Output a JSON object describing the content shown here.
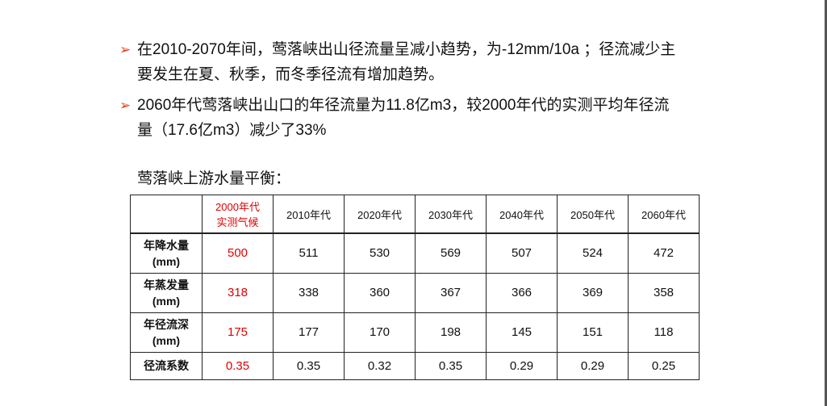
{
  "bullets": [
    "在2010-2070年间，莺落峡出山径流量呈减小趋势，为-12mm/10a ；径流减少主要发生在夏、秋季，而冬季径流有增加趋势。",
    "2060年代莺落峡出山口的年径流量为11.8亿m3，较2000年代的实测平均年径流量（17.6亿m3）减少了33%"
  ],
  "table": {
    "caption": "莺落峡上游水量平衡：",
    "header": [
      [
        "2000年代",
        "实测气候"
      ],
      [
        "2010年代"
      ],
      [
        "2020年代"
      ],
      [
        "2030年代"
      ],
      [
        "2040年代"
      ],
      [
        "2050年代"
      ],
      [
        "2060年代"
      ]
    ],
    "rows": [
      {
        "label": [
          "年降水量",
          "(mm)"
        ],
        "values": [
          500,
          511,
          530,
          569,
          507,
          524,
          472
        ]
      },
      {
        "label": [
          "年蒸发量",
          "(mm)"
        ],
        "values": [
          318,
          338,
          360,
          367,
          366,
          369,
          358
        ]
      },
      {
        "label": [
          "年径流深",
          "(mm)"
        ],
        "values": [
          175,
          177,
          170,
          198,
          145,
          151,
          118
        ]
      },
      {
        "label": [
          "径流系数"
        ],
        "values": [
          0.35,
          0.35,
          0.32,
          0.35,
          0.29,
          0.29,
          0.25
        ]
      }
    ]
  }
}
